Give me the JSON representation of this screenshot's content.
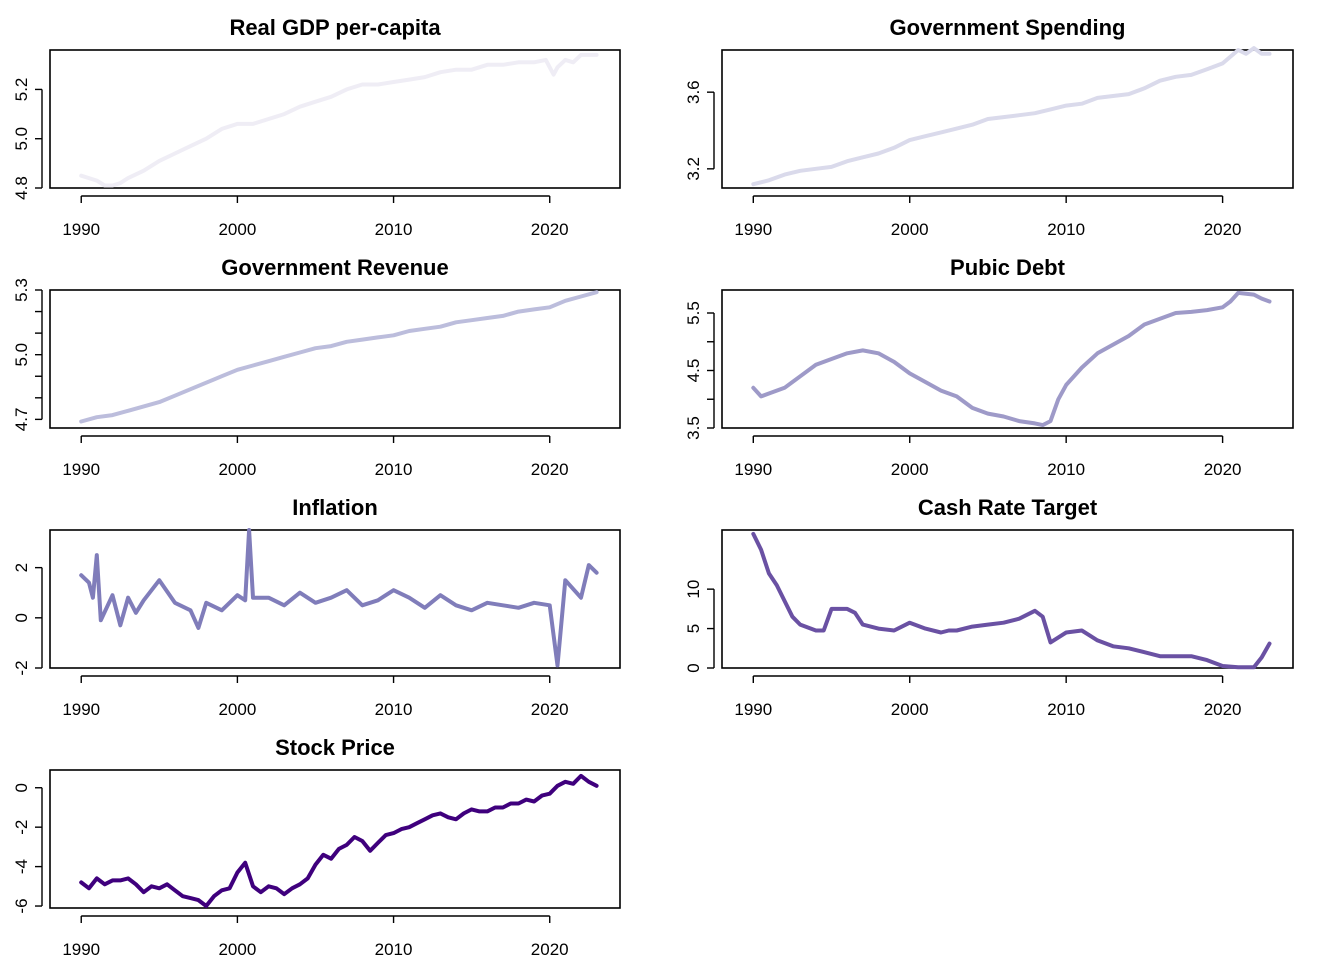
{
  "chart_data": [
    {
      "type": "line",
      "title": "Real GDP per-capita",
      "xlabel": "",
      "ylabel": "",
      "xlim": [
        1988,
        2024.5
      ],
      "ylim": [
        4.8,
        5.36
      ],
      "xticks": [
        1990,
        2000,
        2010,
        2020
      ],
      "yticks": [
        4.8,
        5.0,
        5.2
      ],
      "ytick_labels": [
        "4.8",
        "5.0",
        "5.2"
      ],
      "color": "#efedf5",
      "series": [
        {
          "x": [
            1990,
            1990.5,
            1991,
            1991.5,
            1992,
            1992.5,
            1993,
            1994,
            1995,
            1996,
            1997,
            1998,
            1999,
            2000,
            2001,
            2002,
            2003,
            2004,
            2005,
            2006,
            2007,
            2008,
            2009,
            2010,
            2011,
            2012,
            2013,
            2014,
            2015,
            2016,
            2017,
            2018,
            2019,
            2019.75,
            2020.25,
            2020.5,
            2021,
            2021.5,
            2022,
            2023
          ],
          "y": [
            4.85,
            4.84,
            4.83,
            4.81,
            4.81,
            4.82,
            4.84,
            4.87,
            4.91,
            4.94,
            4.97,
            5.0,
            5.04,
            5.06,
            5.06,
            5.08,
            5.1,
            5.13,
            5.15,
            5.17,
            5.2,
            5.22,
            5.22,
            5.23,
            5.24,
            5.25,
            5.27,
            5.28,
            5.28,
            5.3,
            5.3,
            5.31,
            5.31,
            5.32,
            5.26,
            5.29,
            5.32,
            5.31,
            5.34,
            5.34
          ]
        }
      ]
    },
    {
      "type": "line",
      "title": "Government Spending",
      "xlabel": "",
      "ylabel": "",
      "xlim": [
        1988,
        2024.5
      ],
      "ylim": [
        3.1,
        3.82
      ],
      "xticks": [
        1990,
        2000,
        2010,
        2020
      ],
      "yticks": [
        3.2,
        3.6
      ],
      "ytick_labels": [
        "3.2",
        "3.6"
      ],
      "color": "#dadaeb",
      "series": [
        {
          "x": [
            1990,
            1991,
            1992,
            1993,
            1994,
            1995,
            1996,
            1997,
            1998,
            1999,
            2000,
            2001,
            2002,
            2003,
            2004,
            2005,
            2006,
            2007,
            2008,
            2009,
            2010,
            2011,
            2012,
            2013,
            2014,
            2015,
            2016,
            2017,
            2018,
            2019,
            2020,
            2021,
            2021.5,
            2022,
            2022.5,
            2023
          ],
          "y": [
            3.12,
            3.14,
            3.17,
            3.19,
            3.2,
            3.21,
            3.24,
            3.26,
            3.28,
            3.31,
            3.35,
            3.37,
            3.39,
            3.41,
            3.43,
            3.46,
            3.47,
            3.48,
            3.49,
            3.51,
            3.53,
            3.54,
            3.57,
            3.58,
            3.59,
            3.62,
            3.66,
            3.68,
            3.69,
            3.72,
            3.75,
            3.82,
            3.8,
            3.83,
            3.8,
            3.8
          ]
        }
      ]
    },
    {
      "type": "line",
      "title": "Government Revenue",
      "xlabel": "",
      "ylabel": "",
      "xlim": [
        1988,
        2024.5
      ],
      "ylim": [
        4.66,
        5.3
      ],
      "xticks": [
        1990,
        2000,
        2010,
        2020
      ],
      "yticks": [
        4.7,
        4.8,
        4.9,
        5.0,
        5.1,
        5.2,
        5.3
      ],
      "ytick_labels": [
        "4.7",
        "",
        "",
        "5.0",
        "",
        "",
        "5.3"
      ],
      "color": "#bcbddc",
      "series": [
        {
          "x": [
            1990,
            1991,
            1992,
            1993,
            1994,
            1995,
            1996,
            1997,
            1998,
            1999,
            2000,
            2001,
            2002,
            2003,
            2004,
            2005,
            2006,
            2007,
            2008,
            2009,
            2010,
            2011,
            2012,
            2013,
            2014,
            2015,
            2016,
            2017,
            2018,
            2019,
            2020,
            2021,
            2022,
            2023
          ],
          "y": [
            4.69,
            4.71,
            4.72,
            4.74,
            4.76,
            4.78,
            4.81,
            4.84,
            4.87,
            4.9,
            4.93,
            4.95,
            4.97,
            4.99,
            5.01,
            5.03,
            5.04,
            5.06,
            5.07,
            5.08,
            5.09,
            5.11,
            5.12,
            5.13,
            5.15,
            5.16,
            5.17,
            5.18,
            5.2,
            5.21,
            5.22,
            5.25,
            5.27,
            5.29
          ]
        }
      ]
    },
    {
      "type": "line",
      "title": "Pubic Debt",
      "xlabel": "",
      "ylabel": "",
      "xlim": [
        1988,
        2024.5
      ],
      "ylim": [
        3.5,
        5.9
      ],
      "xticks": [
        1990,
        2000,
        2010,
        2020
      ],
      "yticks": [
        3.5,
        4.0,
        4.5,
        5.0,
        5.5
      ],
      "ytick_labels": [
        "3.5",
        "",
        "4.5",
        "",
        "5.5"
      ],
      "color": "#9e9ac8",
      "series": [
        {
          "x": [
            1990,
            1990.5,
            1991,
            1992,
            1993,
            1994,
            1995,
            1996,
            1997,
            1998,
            1999,
            2000,
            2001,
            2002,
            2003,
            2004,
            2005,
            2006,
            2007,
            2008,
            2008.5,
            2009,
            2009.5,
            2010,
            2011,
            2012,
            2013,
            2014,
            2015,
            2016,
            2017,
            2018,
            2019,
            2020,
            2020.5,
            2021,
            2022,
            2022.5,
            2023
          ],
          "y": [
            4.2,
            4.05,
            4.1,
            4.2,
            4.4,
            4.6,
            4.7,
            4.8,
            4.85,
            4.8,
            4.65,
            4.45,
            4.3,
            4.15,
            4.05,
            3.85,
            3.75,
            3.7,
            3.62,
            3.58,
            3.55,
            3.62,
            4.0,
            4.25,
            4.55,
            4.8,
            4.95,
            5.1,
            5.3,
            5.4,
            5.5,
            5.52,
            5.55,
            5.6,
            5.7,
            5.85,
            5.82,
            5.75,
            5.7
          ]
        }
      ]
    },
    {
      "type": "line",
      "title": "Inflation",
      "xlabel": "",
      "ylabel": "",
      "xlim": [
        1988,
        2024.5
      ],
      "ylim": [
        -2,
        3.5
      ],
      "xticks": [
        1990,
        2000,
        2010,
        2020
      ],
      "yticks": [
        -2,
        0,
        2
      ],
      "ytick_labels": [
        "-2",
        "0",
        "2"
      ],
      "color": "#807dba",
      "series": [
        {
          "x": [
            1990,
            1990.5,
            1990.75,
            1991,
            1991.25,
            1992,
            1992.5,
            1993,
            1993.5,
            1994,
            1995,
            1996,
            1997,
            1997.5,
            1998,
            1999,
            2000,
            2000.5,
            2000.75,
            2001,
            2002,
            2003,
            2004,
            2005,
            2006,
            2007,
            2008,
            2009,
            2010,
            2011,
            2012,
            2013,
            2014,
            2015,
            2016,
            2017,
            2018,
            2019,
            2020,
            2020.5,
            2021,
            2022,
            2022.5,
            2023
          ],
          "y": [
            1.7,
            1.4,
            0.8,
            2.5,
            -0.1,
            0.9,
            -0.3,
            0.8,
            0.2,
            0.7,
            1.5,
            0.6,
            0.3,
            -0.4,
            0.6,
            0.3,
            0.9,
            0.7,
            3.5,
            0.8,
            0.8,
            0.5,
            1.0,
            0.6,
            0.8,
            1.1,
            0.5,
            0.7,
            1.1,
            0.8,
            0.4,
            0.9,
            0.5,
            0.3,
            0.6,
            0.5,
            0.4,
            0.6,
            0.5,
            -1.9,
            1.5,
            0.8,
            2.1,
            1.8
          ]
        }
      ]
    },
    {
      "type": "line",
      "title": "Cash Rate Target",
      "xlabel": "",
      "ylabel": "",
      "xlim": [
        1988,
        2024.5
      ],
      "ylim": [
        0,
        17.5
      ],
      "xticks": [
        1990,
        2000,
        2010,
        2020
      ],
      "yticks": [
        0,
        5,
        10
      ],
      "ytick_labels": [
        "0",
        "5",
        "10"
      ],
      "color": "#6a51a3",
      "series": [
        {
          "x": [
            1990,
            1990.5,
            1991,
            1991.5,
            1992,
            1992.5,
            1993,
            1994,
            1994.5,
            1995,
            1996,
            1996.5,
            1997,
            1998,
            1999,
            2000,
            2001,
            2002,
            2002.5,
            2003,
            2004,
            2005,
            2006,
            2007,
            2008,
            2008.5,
            2009,
            2010,
            2011,
            2012,
            2013,
            2014,
            2015,
            2016,
            2017,
            2018,
            2019,
            2020,
            2021,
            2022,
            2022.5,
            2023
          ],
          "y": [
            17.0,
            15.0,
            12.0,
            10.5,
            8.5,
            6.5,
            5.5,
            4.75,
            4.75,
            7.5,
            7.5,
            7.0,
            5.5,
            5.0,
            4.75,
            5.75,
            5.0,
            4.5,
            4.75,
            4.75,
            5.25,
            5.5,
            5.75,
            6.25,
            7.25,
            6.5,
            3.25,
            4.5,
            4.75,
            3.5,
            2.75,
            2.5,
            2.0,
            1.5,
            1.5,
            1.5,
            1.0,
            0.25,
            0.1,
            0.1,
            1.35,
            3.1
          ]
        }
      ]
    },
    {
      "type": "line",
      "title": "Stock Price",
      "xlabel": "",
      "ylabel": "",
      "xlim": [
        1988,
        2024.5
      ],
      "ylim": [
        -6.1,
        0.9
      ],
      "xticks": [
        1990,
        2000,
        2010,
        2020
      ],
      "yticks": [
        -6,
        -4,
        -2,
        0
      ],
      "ytick_labels": [
        "-6",
        "-4",
        "-2",
        "0"
      ],
      "color": "#3f007d",
      "series": [
        {
          "x": [
            1990,
            1990.5,
            1991,
            1991.5,
            1992,
            1992.5,
            1993,
            1993.5,
            1994,
            1994.5,
            1995,
            1995.5,
            1996,
            1996.5,
            1997,
            1997.5,
            1998,
            1998.5,
            1999,
            1999.5,
            2000,
            2000.5,
            2001,
            2001.5,
            2002,
            2002.5,
            2003,
            2003.5,
            2004,
            2004.5,
            2005,
            2005.5,
            2006,
            2006.5,
            2007,
            2007.5,
            2008,
            2008.5,
            2009,
            2009.5,
            2010,
            2010.5,
            2011,
            2011.5,
            2012,
            2012.5,
            2013,
            2013.5,
            2014,
            2014.5,
            2015,
            2015.5,
            2016,
            2016.5,
            2017,
            2017.5,
            2018,
            2018.5,
            2019,
            2019.5,
            2020,
            2020.5,
            2021,
            2021.5,
            2022,
            2022.5,
            2023
          ],
          "y": [
            -4.8,
            -5.1,
            -4.6,
            -4.9,
            -4.7,
            -4.7,
            -4.6,
            -4.9,
            -5.3,
            -5.0,
            -5.1,
            -4.9,
            -5.2,
            -5.5,
            -5.6,
            -5.7,
            -6.0,
            -5.5,
            -5.2,
            -5.1,
            -4.3,
            -3.8,
            -5.0,
            -5.3,
            -5.0,
            -5.1,
            -5.4,
            -5.1,
            -4.9,
            -4.6,
            -3.9,
            -3.4,
            -3.6,
            -3.1,
            -2.9,
            -2.5,
            -2.7,
            -3.2,
            -2.8,
            -2.4,
            -2.3,
            -2.1,
            -2.0,
            -1.8,
            -1.6,
            -1.4,
            -1.3,
            -1.5,
            -1.6,
            -1.3,
            -1.1,
            -1.2,
            -1.2,
            -1.0,
            -1.0,
            -0.8,
            -0.8,
            -0.6,
            -0.7,
            -0.4,
            -0.3,
            0.1,
            0.3,
            0.2,
            0.6,
            0.3,
            0.1
          ]
        }
      ]
    }
  ]
}
